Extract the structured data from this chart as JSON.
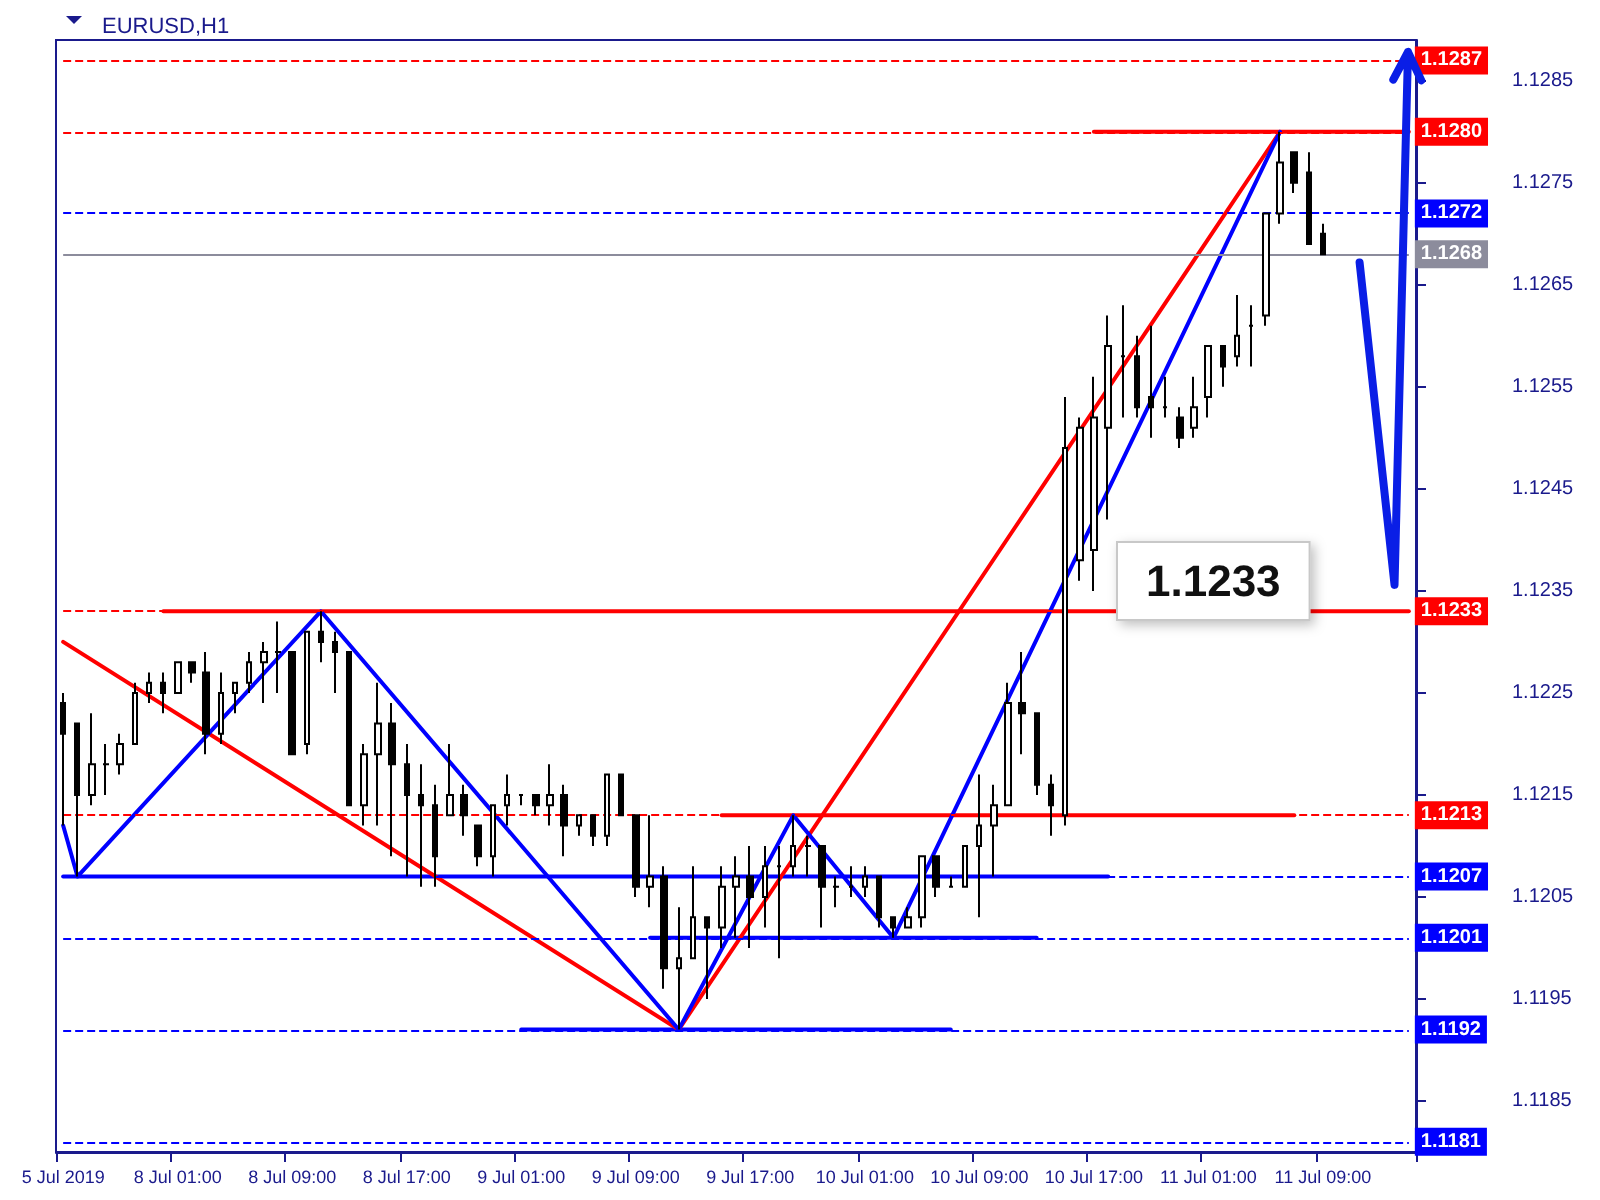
{
  "chart_data": {
    "type": "candlestick",
    "title": "EURUSD,H1",
    "color": "#000000",
    "categories": [
      "5 Jul 2019",
      null,
      null,
      null,
      null,
      null,
      null,
      null,
      "8 Jul 01:00",
      null,
      null,
      null,
      null,
      null,
      null,
      null,
      "8 Jul 09:00",
      null,
      null,
      null,
      null,
      null,
      null,
      null,
      "8 Jul 17:00",
      null,
      null,
      null,
      null,
      null,
      null,
      null,
      "9 Jul 01:00",
      null,
      null,
      null,
      null,
      null,
      null,
      null,
      "9 Jul 09:00",
      null,
      null,
      null,
      null,
      null,
      null,
      null,
      "9 Jul 17:00",
      null,
      null,
      null,
      null,
      null,
      null,
      null,
      "10 Jul 01:00",
      null,
      null,
      null,
      null,
      null,
      null,
      null,
      "10 Jul 09:00",
      null,
      null,
      null,
      null,
      null,
      null,
      null,
      "10 Jul 17:00",
      null,
      null,
      null,
      null,
      null,
      null,
      null,
      "11 Jul 01:00",
      null,
      null,
      null,
      null,
      null,
      null,
      null,
      "11 Jul 09:00",
      null,
      null,
      null,
      null,
      null,
      null
    ],
    "ohlc": [
      [
        1.1224,
        1.1225,
        1.1212,
        1.1221
      ],
      [
        1.1222,
        1.1222,
        1.1207,
        1.1215
      ],
      [
        1.1215,
        1.1223,
        1.1214,
        1.1218
      ],
      [
        1.1218,
        1.122,
        1.1215,
        1.1218
      ],
      [
        1.1218,
        1.1221,
        1.1217,
        1.122
      ],
      [
        1.122,
        1.1226,
        1.122,
        1.1225
      ],
      [
        1.1225,
        1.1227,
        1.1224,
        1.1226
      ],
      [
        1.1226,
        1.1227,
        1.1223,
        1.1225
      ],
      [
        1.1225,
        1.1228,
        1.1225,
        1.1228
      ],
      [
        1.1228,
        1.1228,
        1.1226,
        1.1227
      ],
      [
        1.1227,
        1.1229,
        1.1219,
        1.1221
      ],
      [
        1.1221,
        1.1227,
        1.122,
        1.1225
      ],
      [
        1.1225,
        1.1226,
        1.1223,
        1.1226
      ],
      [
        1.1226,
        1.1229,
        1.1225,
        1.1228
      ],
      [
        1.1228,
        1.123,
        1.1224,
        1.1229
      ],
      [
        1.1229,
        1.1232,
        1.1225,
        1.1229
      ],
      [
        1.1229,
        1.1229,
        1.1219,
        1.1219
      ],
      [
        1.122,
        1.1231,
        1.1219,
        1.1231
      ],
      [
        1.1231,
        1.1233,
        1.1228,
        1.123
      ],
      [
        1.123,
        1.1231,
        1.1225,
        1.1229
      ],
      [
        1.1229,
        1.1229,
        1.1214,
        1.1214
      ],
      [
        1.1214,
        1.122,
        1.1212,
        1.1219
      ],
      [
        1.1219,
        1.1226,
        1.1212,
        1.1222
      ],
      [
        1.1222,
        1.1224,
        1.1209,
        1.1218
      ],
      [
        1.1218,
        1.122,
        1.1207,
        1.1215
      ],
      [
        1.1215,
        1.1218,
        1.1206,
        1.1214
      ],
      [
        1.1214,
        1.1216,
        1.1206,
        1.1209
      ],
      [
        1.1213,
        1.122,
        1.1213,
        1.1215
      ],
      [
        1.1215,
        1.1216,
        1.1211,
        1.1213
      ],
      [
        1.1212,
        1.1212,
        1.1208,
        1.1209
      ],
      [
        1.1209,
        1.1214,
        1.1207,
        1.1214
      ],
      [
        1.1214,
        1.1217,
        1.1212,
        1.1215
      ],
      [
        1.1215,
        1.1215,
        1.1214,
        1.1215
      ],
      [
        1.1215,
        1.1215,
        1.1213,
        1.1214
      ],
      [
        1.1214,
        1.1218,
        1.1212,
        1.1215
      ],
      [
        1.1215,
        1.1216,
        1.1209,
        1.1212
      ],
      [
        1.1212,
        1.1213,
        1.1211,
        1.1213
      ],
      [
        1.1213,
        1.1213,
        1.121,
        1.1211
      ],
      [
        1.1211,
        1.1217,
        1.121,
        1.1217
      ],
      [
        1.1217,
        1.1217,
        1.1213,
        1.1213
      ],
      [
        1.1213,
        1.1213,
        1.1205,
        1.1206
      ],
      [
        1.1206,
        1.1213,
        1.1204,
        1.1207
      ],
      [
        1.1207,
        1.1208,
        1.1196,
        1.1198
      ],
      [
        1.1198,
        1.1204,
        1.1192,
        1.1199
      ],
      [
        1.1199,
        1.1208,
        1.1199,
        1.1203
      ],
      [
        1.1203,
        1.1203,
        1.1195,
        1.1202
      ],
      [
        1.1202,
        1.1208,
        1.12,
        1.1206
      ],
      [
        1.1206,
        1.1209,
        1.1201,
        1.1207
      ],
      [
        1.1207,
        1.121,
        1.12,
        1.1205
      ],
      [
        1.1205,
        1.121,
        1.1202,
        1.1208
      ],
      [
        1.1208,
        1.121,
        1.1199,
        1.1208
      ],
      [
        1.1208,
        1.1213,
        1.1207,
        1.121
      ],
      [
        1.121,
        1.1211,
        1.1207,
        1.121
      ],
      [
        1.121,
        1.121,
        1.1202,
        1.1206
      ],
      [
        1.1206,
        1.1207,
        1.1204,
        1.1206
      ],
      [
        1.1206,
        1.1208,
        1.1205,
        1.1206
      ],
      [
        1.1206,
        1.1208,
        1.1205,
        1.1207
      ],
      [
        1.1207,
        1.1207,
        1.1202,
        1.1203
      ],
      [
        1.1203,
        1.1203,
        1.1201,
        1.1202
      ],
      [
        1.1202,
        1.1204,
        1.1202,
        1.1203
      ],
      [
        1.1203,
        1.1209,
        1.1202,
        1.1209
      ],
      [
        1.1209,
        1.1209,
        1.1205,
        1.1206
      ],
      [
        1.1206,
        1.1207,
        1.1206,
        1.1206
      ],
      [
        1.1206,
        1.121,
        1.1206,
        1.121
      ],
      [
        1.121,
        1.1217,
        1.1203,
        1.1212
      ],
      [
        1.1212,
        1.1216,
        1.1207,
        1.1214
      ],
      [
        1.1214,
        1.1226,
        1.1214,
        1.1224
      ],
      [
        1.1224,
        1.1229,
        1.1219,
        1.1223
      ],
      [
        1.1223,
        1.1223,
        1.1215,
        1.1216
      ],
      [
        1.1216,
        1.1217,
        1.1211,
        1.1214
      ],
      [
        1.1213,
        1.1254,
        1.1212,
        1.1249
      ],
      [
        1.1238,
        1.1252,
        1.1236,
        1.1251
      ],
      [
        1.1239,
        1.1256,
        1.1235,
        1.1252
      ],
      [
        1.1251,
        1.1262,
        1.1242,
        1.1259
      ],
      [
        1.1258,
        1.1263,
        1.1252,
        1.1258
      ],
      [
        1.1258,
        1.126,
        1.1252,
        1.1253
      ],
      [
        1.1254,
        1.1261,
        1.125,
        1.1253
      ],
      [
        1.1253,
        1.1256,
        1.1252,
        1.1253
      ],
      [
        1.1252,
        1.1253,
        1.1249,
        1.125
      ],
      [
        1.1251,
        1.1256,
        1.125,
        1.1253
      ],
      [
        1.1254,
        1.1259,
        1.1252,
        1.1259
      ],
      [
        1.1259,
        1.1259,
        1.1255,
        1.1257
      ],
      [
        1.1258,
        1.1264,
        1.1257,
        1.126
      ],
      [
        1.1261,
        1.1263,
        1.1257,
        1.1261
      ],
      [
        1.1262,
        1.1272,
        1.1261,
        1.1272
      ],
      [
        1.1272,
        1.128,
        1.1271,
        1.1277
      ],
      [
        1.1278,
        1.1278,
        1.1274,
        1.1275
      ],
      [
        1.1276,
        1.1278,
        1.1269,
        1.1269
      ],
      [
        1.127,
        1.1271,
        1.1268,
        1.1268
      ],
      null,
      null,
      null,
      null,
      null,
      null
    ],
    "series": [
      {
        "type": "line",
        "color": "#ff0000",
        "values": [
          null,
          null,
          null,
          null,
          null,
          null,
          null,
          1.1233,
          null,
          null,
          null,
          null,
          null,
          null,
          null,
          null,
          null,
          null,
          null,
          null,
          null,
          null,
          null,
          null,
          null,
          null,
          null,
          null,
          null,
          null,
          null,
          null,
          null,
          null,
          null,
          null,
          null,
          null,
          null,
          null,
          null,
          null,
          null,
          null,
          null,
          null,
          null,
          null,
          null,
          null,
          null,
          null,
          null,
          null,
          null,
          null,
          null,
          null,
          null,
          null,
          null,
          null,
          null,
          null,
          null,
          null,
          null,
          null,
          null,
          null,
          null,
          null,
          null,
          null,
          null,
          null,
          null,
          null,
          null,
          null,
          null,
          null,
          null,
          null,
          null,
          null,
          null,
          null,
          null,
          null,
          null,
          null,
          null,
          null,
          1.1233
        ]
      },
      {
        "type": "line",
        "color": "#ff0000",
        "values": [
          null,
          null,
          null,
          null,
          null,
          null,
          null,
          null,
          null,
          null,
          null,
          null,
          null,
          null,
          null,
          null,
          null,
          null,
          null,
          null,
          null,
          null,
          null,
          null,
          null,
          null,
          null,
          null,
          null,
          null,
          null,
          null,
          null,
          null,
          null,
          null,
          null,
          null,
          null,
          null,
          null,
          null,
          null,
          null,
          null,
          null,
          null,
          null,
          null,
          null,
          null,
          null,
          null,
          null,
          null,
          null,
          null,
          null,
          null,
          null,
          null,
          null,
          null,
          null,
          null,
          null,
          null,
          null,
          null,
          null,
          null,
          null,
          1.128,
          null,
          null,
          null,
          null,
          null,
          null,
          null,
          null,
          null,
          null,
          null,
          null,
          null,
          null,
          null,
          null,
          null,
          null,
          null,
          null,
          null,
          1.128
        ]
      },
      {
        "type": "line",
        "color": "#ff0000",
        "values": [
          null,
          null,
          null,
          null,
          null,
          null,
          null,
          null,
          null,
          null,
          null,
          null,
          null,
          null,
          null,
          null,
          null,
          null,
          null,
          null,
          null,
          null,
          null,
          null,
          null,
          null,
          null,
          null,
          null,
          null,
          null,
          null,
          null,
          null,
          null,
          null,
          null,
          null,
          null,
          null,
          null,
          null,
          null,
          null,
          null,
          null,
          1.1213,
          null,
          null,
          null,
          null,
          null,
          null,
          null,
          null,
          null,
          null,
          null,
          null,
          null,
          null,
          null,
          null,
          null,
          null,
          null,
          null,
          null,
          null,
          null,
          null,
          null,
          null,
          null,
          null,
          null,
          null,
          null,
          null,
          null,
          null,
          null,
          null,
          null,
          null,
          null,
          1.1213,
          null,
          null,
          null,
          null,
          null,
          null,
          null,
          null
        ]
      },
      {
        "type": "line",
        "color": "#0000ff",
        "values": [
          1.1207,
          null,
          null,
          null,
          null,
          null,
          null,
          null,
          null,
          null,
          null,
          null,
          null,
          null,
          null,
          null,
          null,
          null,
          null,
          null,
          null,
          null,
          null,
          null,
          null,
          null,
          null,
          null,
          null,
          null,
          null,
          null,
          null,
          null,
          null,
          null,
          null,
          null,
          null,
          null,
          null,
          null,
          null,
          null,
          null,
          null,
          null,
          null,
          null,
          null,
          null,
          null,
          null,
          null,
          null,
          null,
          null,
          null,
          null,
          null,
          null,
          null,
          null,
          null,
          null,
          null,
          null,
          null,
          null,
          null,
          null,
          null,
          null,
          1.1207,
          null,
          null,
          null,
          null,
          null,
          null,
          null,
          null,
          null,
          null,
          null,
          null,
          null,
          null,
          null,
          null,
          null,
          null,
          null,
          null,
          null
        ]
      },
      {
        "type": "line",
        "color": "#0000ff",
        "values": [
          null,
          null,
          null,
          null,
          null,
          null,
          null,
          null,
          null,
          null,
          null,
          null,
          null,
          null,
          null,
          null,
          null,
          null,
          null,
          null,
          null,
          null,
          null,
          null,
          null,
          null,
          null,
          null,
          null,
          null,
          null,
          null,
          null,
          null,
          null,
          null,
          null,
          null,
          null,
          null,
          null,
          1.1201,
          null,
          null,
          null,
          null,
          null,
          null,
          null,
          null,
          null,
          null,
          null,
          null,
          null,
          null,
          null,
          null,
          null,
          null,
          null,
          null,
          null,
          null,
          null,
          null,
          null,
          null,
          1.1201,
          null,
          null,
          null,
          null,
          null,
          null,
          null,
          null,
          null,
          null,
          null,
          null,
          null,
          null,
          null,
          null,
          null,
          null,
          null,
          null,
          null,
          null,
          null,
          null,
          null,
          null
        ]
      },
      {
        "type": "line",
        "color": "#0000ff",
        "values": [
          null,
          null,
          null,
          null,
          null,
          null,
          null,
          null,
          null,
          null,
          null,
          null,
          null,
          null,
          null,
          null,
          null,
          null,
          null,
          null,
          null,
          null,
          null,
          null,
          null,
          null,
          null,
          null,
          null,
          null,
          null,
          null,
          1.1192,
          null,
          null,
          null,
          null,
          null,
          null,
          null,
          null,
          null,
          null,
          null,
          null,
          null,
          null,
          null,
          null,
          null,
          null,
          null,
          null,
          null,
          null,
          null,
          null,
          null,
          null,
          null,
          null,
          null,
          1.1192,
          null,
          null,
          null,
          null,
          null,
          null,
          null,
          null,
          null,
          null,
          null,
          null,
          null,
          null,
          null,
          null,
          null,
          null,
          null,
          null,
          null,
          null,
          null,
          null,
          null,
          null,
          null,
          null,
          null,
          null,
          null,
          null
        ]
      },
      {
        "type": "line",
        "color": "#ff0000",
        "values": [
          1.123,
          null,
          null,
          null,
          null,
          null,
          null,
          null,
          null,
          null,
          null,
          null,
          null,
          null,
          null,
          null,
          null,
          null,
          null,
          null,
          null,
          null,
          null,
          null,
          null,
          null,
          null,
          null,
          null,
          null,
          null,
          null,
          null,
          null,
          null,
          null,
          null,
          null,
          null,
          null,
          null,
          null,
          null,
          1.1192,
          null,
          null,
          null,
          null,
          null,
          null,
          null,
          null,
          null,
          null,
          null,
          null,
          null,
          null,
          null,
          null,
          null,
          null,
          null,
          null,
          null,
          null,
          null,
          null,
          null,
          null,
          null,
          null,
          null,
          null,
          null,
          null,
          null,
          null,
          null,
          null,
          null,
          null,
          null,
          null,
          null,
          1.128,
          null,
          null,
          null,
          null,
          null,
          null,
          null,
          null,
          null
        ]
      },
      {
        "type": "line",
        "color": "#0000ff",
        "values": [
          1.1212,
          1.1207,
          null,
          null,
          null,
          null,
          null,
          null,
          null,
          null,
          null,
          null,
          null,
          null,
          null,
          null,
          null,
          null,
          1.1233,
          null,
          null,
          null,
          null,
          null,
          null,
          null,
          null,
          null,
          null,
          null,
          null,
          null,
          null,
          null,
          null,
          null,
          null,
          null,
          null,
          null,
          null,
          null,
          null,
          1.1192,
          null,
          null,
          null,
          null,
          null,
          null,
          null,
          1.1213,
          null,
          null,
          null,
          null,
          null,
          null,
          1.1201,
          null,
          null,
          null,
          null,
          null,
          null,
          null,
          null,
          null,
          null,
          null,
          null,
          null,
          null,
          null,
          null,
          null,
          null,
          null,
          null,
          null,
          null,
          null,
          null,
          null,
          null,
          1.128,
          null,
          null,
          null,
          null,
          null,
          null,
          null,
          null,
          null
        ]
      }
    ],
    "ylim": [
      1.118,
      1.1289
    ],
    "yticks": [
      1.1185,
      1.1195,
      1.1205,
      1.1215,
      1.1225,
      1.1235,
      1.1245,
      1.1255,
      1.1265,
      1.1275,
      1.1285
    ],
    "ref_lines": [
      {
        "axis": "y",
        "value": 1.1287,
        "label": "1.1287",
        "color": "#ff0000",
        "line_style": "dashed"
      },
      {
        "axis": "y",
        "value": 1.128,
        "label": "1.1280",
        "color": "#ff0000",
        "line_style": "dashed"
      },
      {
        "axis": "y",
        "value": 1.1272,
        "label": "1.1272",
        "color": "#0000ff",
        "line_style": "dashed"
      },
      {
        "axis": "y",
        "value": 1.1268,
        "label": "1.1268",
        "color": "#8c8c9c",
        "line_style": "solid"
      },
      {
        "axis": "y",
        "value": 1.1233,
        "label": "1.1233",
        "color": "#ff0000",
        "line_style": "dashed"
      },
      {
        "axis": "y",
        "value": 1.1213,
        "label": "1.1213",
        "color": "#ff0000",
        "line_style": "dashed"
      },
      {
        "axis": "y",
        "value": 1.1207,
        "label": "1.1207",
        "color": "#0000ff",
        "line_style": "dashed"
      },
      {
        "axis": "y",
        "value": 1.1201,
        "label": "1.1201",
        "color": "#0000ff",
        "line_style": "dashed"
      },
      {
        "axis": "y",
        "value": 1.1192,
        "label": "1.1192",
        "color": "#0000ff",
        "line_style": "dashed"
      },
      {
        "axis": "y",
        "value": 1.1181,
        "label": "1.1181",
        "color": "#0000ff",
        "line_style": "dashed"
      }
    ],
    "annotations": [
      "1.1233"
    ],
    "grid": false,
    "marker": "none"
  }
}
